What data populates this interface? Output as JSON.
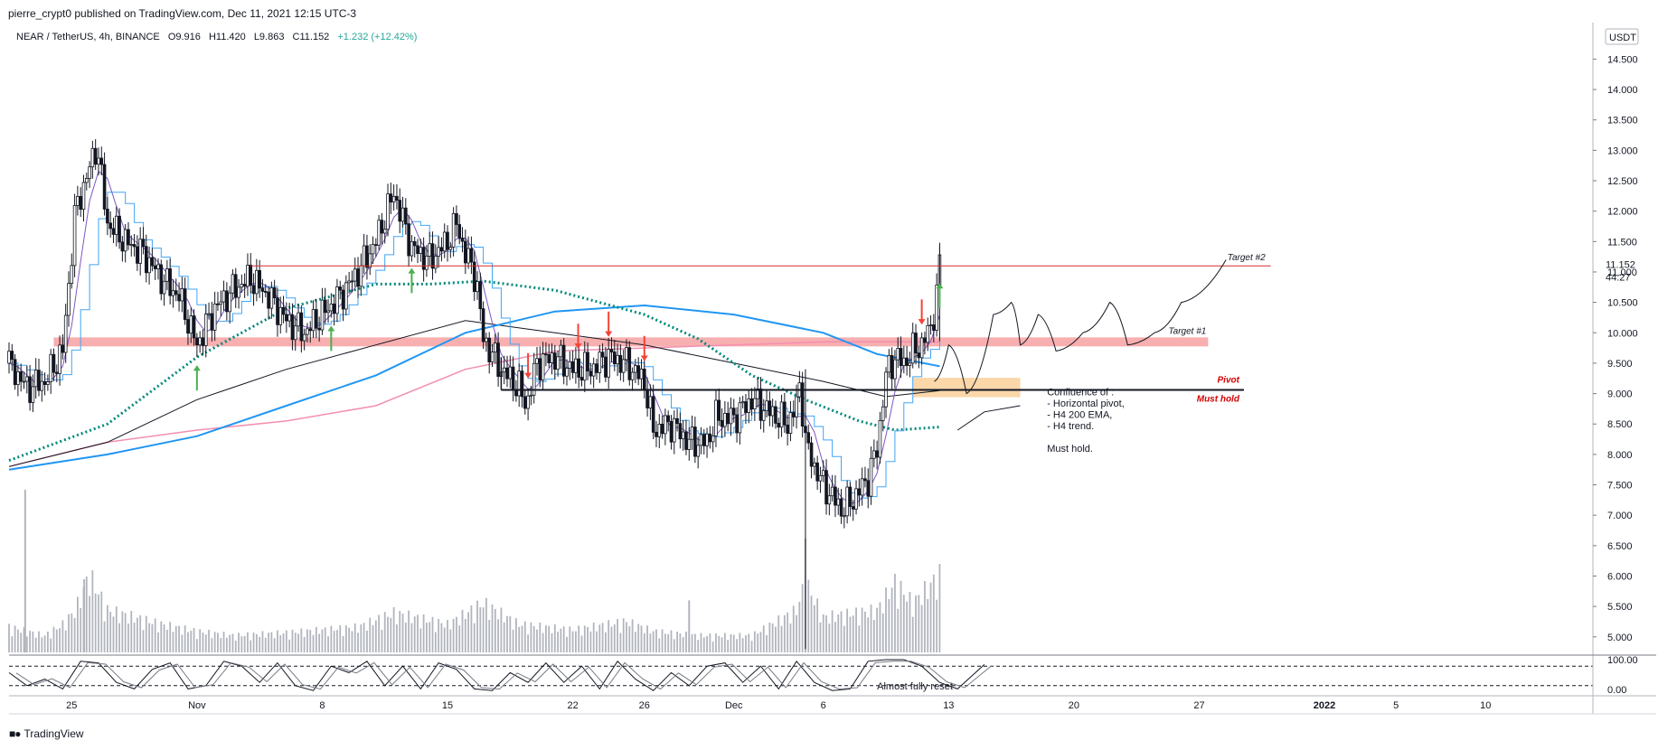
{
  "header": {
    "publisher_line": "pierre_crypt0 published on TradingView.com, Dec 11, 2021 12:15 UTC-3"
  },
  "symbol": {
    "name": "NEAR / TetherUS, 4h, BINANCE",
    "open": "O9.916",
    "high": "H11.420",
    "low": "L9.863",
    "close": "C11.152",
    "change": "+1.232 (+12.42%)",
    "change_color": "#26a69a"
  },
  "price_axis": {
    "currency": "USDT",
    "current_price": "11.152",
    "countdown": "44:27"
  },
  "footer": {
    "brand": "TradingView"
  },
  "colors": {
    "ema_blue": "#2196f3",
    "ema_black": "#131722",
    "ema_pink": "#f48fb1",
    "teal_dotted": "#00897b",
    "fast_line": "#7e57c2",
    "step_line": "#42a5f5",
    "bull_arrow": "#4caf50",
    "bear_arrow": "#f44336",
    "target_zone": "#f7a1a1",
    "pivot_zone": "#fbd3a0"
  },
  "chart_data": [
    {
      "type": "candlestick",
      "title": "NEAR / TetherUS, 4h, BINANCE",
      "y_ticks": [
        5.0,
        5.5,
        6.0,
        6.5,
        7.0,
        7.5,
        8.0,
        8.5,
        9.0,
        9.5,
        10.0,
        10.5,
        11.0,
        11.5,
        12.0,
        12.5,
        13.0,
        13.5,
        14.0,
        14.5
      ],
      "y_tick_labels": [
        "5.000",
        "5.500",
        "6.000",
        "6.500",
        "7.000",
        "7.500",
        "8.000",
        "8.500",
        "9.000",
        "9.500",
        "10.000",
        "10.500",
        "11.000",
        "11.500",
        "12.000",
        "12.500",
        "13.000",
        "13.500",
        "14.000",
        "14.500"
      ],
      "ylim": [
        4.7,
        15.1
      ],
      "x_tick_labels": [
        "25",
        "Nov",
        "8",
        "15",
        "22",
        "26",
        "Dec",
        "6",
        "13",
        "20",
        "27",
        "2022",
        "5",
        "10"
      ],
      "x_tick_days": [
        -7,
        0,
        7,
        14,
        21,
        25,
        30,
        35,
        42,
        49,
        56,
        63,
        67,
        72
      ],
      "xlim": [
        -10.5,
        78.0
      ],
      "price_path": [
        [
          -10.5,
          9.5
        ],
        [
          -9.5,
          9.1
        ],
        [
          -8.5,
          9.2
        ],
        [
          -7.5,
          9.7
        ],
        [
          -6.8,
          12.0
        ],
        [
          -6.0,
          12.7
        ],
        [
          -5.6,
          13.1
        ],
        [
          -5.0,
          11.8
        ],
        [
          -4.0,
          11.5
        ],
        [
          -3.0,
          11.3
        ],
        [
          -2.0,
          10.9
        ],
        [
          -1.0,
          10.6
        ],
        [
          0.0,
          9.8
        ],
        [
          1.0,
          10.4
        ],
        [
          2.0,
          10.7
        ],
        [
          3.0,
          10.9
        ],
        [
          4.0,
          10.6
        ],
        [
          5.0,
          10.2
        ],
        [
          6.0,
          10.0
        ],
        [
          7.0,
          10.3
        ],
        [
          8.0,
          10.6
        ],
        [
          9.0,
          11.0
        ],
        [
          10.0,
          11.5
        ],
        [
          11.0,
          12.3
        ],
        [
          12.0,
          11.4
        ],
        [
          13.0,
          11.2
        ],
        [
          14.0,
          11.5
        ],
        [
          14.5,
          11.8
        ],
        [
          15.0,
          11.3
        ],
        [
          15.6,
          10.9
        ],
        [
          16.0,
          9.9
        ],
        [
          17.0,
          9.4
        ],
        [
          18.0,
          9.1
        ],
        [
          18.4,
          8.8
        ],
        [
          19.0,
          9.5
        ],
        [
          20.0,
          9.6
        ],
        [
          21.0,
          9.4
        ],
        [
          22.0,
          9.4
        ],
        [
          23.0,
          9.6
        ],
        [
          24.0,
          9.5
        ],
        [
          25.0,
          9.2
        ],
        [
          25.5,
          8.4
        ],
        [
          26.5,
          8.5
        ],
        [
          27.5,
          8.2
        ],
        [
          28.5,
          8.2
        ],
        [
          29.0,
          8.6
        ],
        [
          30.0,
          8.6
        ],
        [
          31.0,
          8.9
        ],
        [
          32.0,
          8.7
        ],
        [
          33.0,
          8.5
        ],
        [
          33.5,
          8.8
        ],
        [
          33.7,
          9.2
        ],
        [
          34.0,
          8.2
        ],
        [
          34.5,
          7.8
        ],
        [
          35.0,
          7.5
        ],
        [
          35.5,
          7.3
        ],
        [
          36.0,
          7.1
        ],
        [
          36.5,
          7.2
        ],
        [
          37.0,
          7.4
        ],
        [
          37.5,
          7.6
        ],
        [
          38.0,
          8.1
        ],
        [
          38.5,
          9.3
        ],
        [
          39.0,
          9.6
        ],
        [
          39.5,
          9.5
        ],
        [
          40.0,
          9.7
        ],
        [
          40.5,
          9.8
        ],
        [
          41.0,
          10.1
        ],
        [
          41.3,
          10.5
        ],
        [
          41.5,
          11.152
        ]
      ],
      "volume_path": [
        [
          -10.5,
          0.18
        ],
        [
          -8.5,
          0.12
        ],
        [
          -7.5,
          0.2
        ],
        [
          -6.8,
          0.3
        ],
        [
          -6.0,
          0.55
        ],
        [
          -5.0,
          0.3
        ],
        [
          -2.0,
          0.2
        ],
        [
          0.0,
          0.15
        ],
        [
          2.0,
          0.12
        ],
        [
          5.0,
          0.14
        ],
        [
          9.0,
          0.18
        ],
        [
          11.0,
          0.28
        ],
        [
          14.0,
          0.2
        ],
        [
          16.0,
          0.35
        ],
        [
          18.0,
          0.2
        ],
        [
          21.0,
          0.16
        ],
        [
          24.0,
          0.22
        ],
        [
          25.5,
          0.15
        ],
        [
          28.0,
          0.12
        ],
        [
          31.0,
          0.12
        ],
        [
          33.5,
          0.3
        ],
        [
          34.0,
          0.5
        ],
        [
          35.0,
          0.25
        ],
        [
          38.0,
          0.3
        ],
        [
          39.0,
          0.5
        ],
        [
          40.0,
          0.35
        ],
        [
          41.5,
          0.55
        ]
      ],
      "volume_spikes": [
        [
          -9.6,
          1.0
        ],
        [
          -6.3,
          0.45
        ],
        [
          34.0,
          0.7
        ],
        [
          27.5,
          0.32
        ]
      ],
      "ema_black_path": [
        [
          -10.5,
          7.8
        ],
        [
          -5.0,
          8.2
        ],
        [
          0.0,
          8.9
        ],
        [
          5.0,
          9.4
        ],
        [
          10.0,
          9.8
        ],
        [
          15.0,
          10.2
        ],
        [
          20.0,
          10.0
        ],
        [
          25.0,
          9.8
        ],
        [
          30.0,
          9.5
        ],
        [
          35.0,
          9.2
        ],
        [
          38.5,
          8.95
        ],
        [
          41.5,
          9.05
        ]
      ],
      "ema_blue_path": [
        [
          -10.5,
          7.75
        ],
        [
          -5.0,
          8.0
        ],
        [
          0.0,
          8.3
        ],
        [
          5.0,
          8.8
        ],
        [
          10.0,
          9.3
        ],
        [
          15.0,
          10.0
        ],
        [
          20.0,
          10.35
        ],
        [
          25.0,
          10.45
        ],
        [
          30.0,
          10.3
        ],
        [
          35.0,
          10.0
        ],
        [
          38.0,
          9.65
        ],
        [
          41.5,
          9.45
        ]
      ],
      "ema_pink_path": [
        [
          -10.5,
          7.8
        ],
        [
          -5.0,
          8.2
        ],
        [
          0.0,
          8.4
        ],
        [
          5.0,
          8.55
        ],
        [
          10.0,
          8.8
        ],
        [
          15.0,
          9.4
        ],
        [
          20.0,
          9.7
        ],
        [
          25.0,
          9.75
        ],
        [
          30.0,
          9.8
        ],
        [
          35.0,
          9.85
        ],
        [
          41.5,
          9.85
        ]
      ],
      "teal_dotted_path": [
        [
          -10.5,
          7.9
        ],
        [
          -5.0,
          8.5
        ],
        [
          0.0,
          9.6
        ],
        [
          5.0,
          10.4
        ],
        [
          10.0,
          10.8
        ],
        [
          13.0,
          10.8
        ],
        [
          16.0,
          10.85
        ],
        [
          20.0,
          10.7
        ],
        [
          25.0,
          10.3
        ],
        [
          28.0,
          9.9
        ],
        [
          31.0,
          9.3
        ],
        [
          34.0,
          8.9
        ],
        [
          37.0,
          8.55
        ],
        [
          39.0,
          8.4
        ],
        [
          41.5,
          8.45
        ]
      ],
      "stoch_path": [
        [
          -10.5,
          60
        ],
        [
          -9.5,
          20
        ],
        [
          -8.5,
          40
        ],
        [
          -7.5,
          10
        ],
        [
          -6.5,
          95
        ],
        [
          -5.5,
          90
        ],
        [
          -4.5,
          30
        ],
        [
          -3.5,
          10
        ],
        [
          -2.5,
          70
        ],
        [
          -1.5,
          90
        ],
        [
          -0.5,
          10
        ],
        [
          0.5,
          20
        ],
        [
          1.5,
          95
        ],
        [
          2.5,
          80
        ],
        [
          3.5,
          30
        ],
        [
          4.5,
          90
        ],
        [
          5.5,
          20
        ],
        [
          6.5,
          5
        ],
        [
          7.5,
          80
        ],
        [
          8.5,
          60
        ],
        [
          9.5,
          95
        ],
        [
          10.5,
          20
        ],
        [
          11.5,
          80
        ],
        [
          12.5,
          10
        ],
        [
          13.5,
          90
        ],
        [
          14.5,
          70
        ],
        [
          15.5,
          10
        ],
        [
          16.5,
          5
        ],
        [
          17.5,
          60
        ],
        [
          18.5,
          30
        ],
        [
          19.5,
          90
        ],
        [
          20.5,
          30
        ],
        [
          21.5,
          80
        ],
        [
          22.5,
          10
        ],
        [
          23.5,
          95
        ],
        [
          24.5,
          40
        ],
        [
          25.5,
          5
        ],
        [
          26.5,
          60
        ],
        [
          27.5,
          20
        ],
        [
          28.5,
          80
        ],
        [
          29.5,
          90
        ],
        [
          30.5,
          30
        ],
        [
          31.5,
          80
        ],
        [
          32.5,
          10
        ],
        [
          33.5,
          95
        ],
        [
          34.5,
          30
        ],
        [
          35.5,
          5
        ],
        [
          36.5,
          10
        ],
        [
          37.5,
          95
        ],
        [
          38.5,
          100
        ],
        [
          39.5,
          100
        ],
        [
          40.5,
          80
        ],
        [
          41.5,
          30
        ],
        [
          42.5,
          10
        ],
        [
          44.0,
          85
        ]
      ],
      "stoch_levels": [
        80,
        20
      ],
      "stoch_tick_labels": [
        "100.00",
        "0.00"
      ],
      "horizontal_levels": [
        {
          "price": 11.1,
          "label": "Target #2",
          "color": "#d32f2f",
          "x_start": 3.0,
          "x_end": 60.0
        },
        {
          "price": 9.85,
          "label": "Target #1",
          "color": "#f7a1a1",
          "zone": true,
          "x_start": -8.0,
          "x_end": 56.5
        },
        {
          "price": 9.06,
          "label": "Pivot",
          "color": "#d50000",
          "x_start": 17.0,
          "x_end": 58.5
        },
        {
          "price": 9.06,
          "label": "Must hold",
          "color": "#d50000",
          "x_start": 17.0,
          "x_end": 58.5
        }
      ],
      "pivot_box": {
        "x": [
          40.0,
          46.0
        ],
        "y": [
          9.0,
          9.2
        ]
      },
      "bull_arrows": [
        0.0,
        7.5,
        12.0,
        41.5
      ],
      "bear_arrows": [
        18.5,
        21.3,
        23.0,
        25.0,
        40.5
      ],
      "projection_path": [
        [
          41.2,
          9.2
        ],
        [
          42.0,
          9.8
        ],
        [
          43.0,
          9.0
        ],
        [
          44.5,
          10.3
        ],
        [
          45.5,
          10.5
        ],
        [
          46.0,
          9.8
        ],
        [
          47.0,
          10.3
        ],
        [
          48.0,
          9.7
        ],
        [
          49.5,
          10.0
        ],
        [
          51.0,
          10.5
        ],
        [
          52.0,
          9.8
        ],
        [
          53.5,
          10.0
        ],
        [
          55.0,
          10.5
        ],
        [
          57.5,
          11.2
        ]
      ],
      "annotation_pointer": [
        [
          46.0,
          8.8
        ],
        [
          44.0,
          8.7
        ],
        [
          42.5,
          8.4
        ]
      ],
      "annotation": [
        "Confluence of :",
        "- Horizontal pivot,",
        "- H4 200 EMA,",
        "- H4 trend.",
        "",
        "Must hold."
      ],
      "stoch_annotation": "Almost fully reset"
    }
  ]
}
